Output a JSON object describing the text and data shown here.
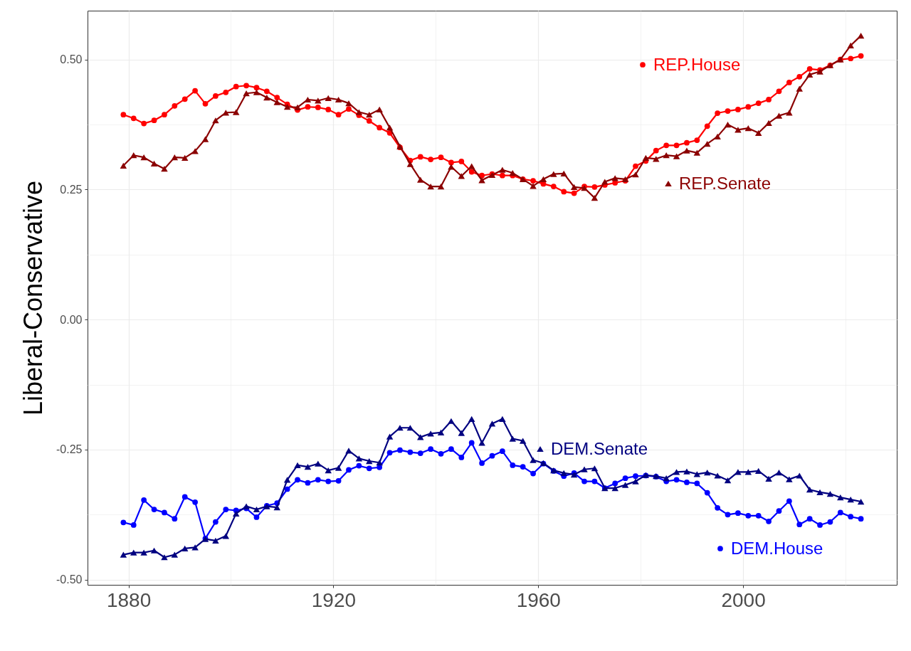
{
  "chart_data": {
    "type": "line",
    "ylabel": "Liberal-Conservative",
    "x": [
      1879,
      1881,
      1883,
      1885,
      1887,
      1889,
      1891,
      1893,
      1895,
      1897,
      1899,
      1901,
      1903,
      1905,
      1907,
      1909,
      1911,
      1913,
      1915,
      1917,
      1919,
      1921,
      1923,
      1925,
      1927,
      1929,
      1931,
      1933,
      1935,
      1937,
      1939,
      1941,
      1943,
      1945,
      1947,
      1949,
      1951,
      1953,
      1955,
      1957,
      1959,
      1961,
      1963,
      1965,
      1967,
      1969,
      1971,
      1973,
      1975,
      1977,
      1979,
      1981,
      1983,
      1985,
      1987,
      1989,
      1991,
      1993,
      1995,
      1997,
      1999,
      2001,
      2003,
      2005,
      2007,
      2009,
      2011,
      2013,
      2015,
      2017,
      2019,
      2021,
      2023
    ],
    "series": [
      {
        "name": "REP.House",
        "color": "#ff0000",
        "marker": "circle",
        "values": [
          0.394,
          0.387,
          0.377,
          0.383,
          0.394,
          0.411,
          0.424,
          0.44,
          0.415,
          0.43,
          0.437,
          0.448,
          0.45,
          0.446,
          0.439,
          0.427,
          0.414,
          0.403,
          0.409,
          0.408,
          0.404,
          0.394,
          0.405,
          0.393,
          0.382,
          0.369,
          0.359,
          0.331,
          0.306,
          0.313,
          0.308,
          0.312,
          0.302,
          0.304,
          0.284,
          0.277,
          0.28,
          0.277,
          0.277,
          0.27,
          0.267,
          0.261,
          0.256,
          0.246,
          0.243,
          0.256,
          0.255,
          0.259,
          0.263,
          0.267,
          0.295,
          0.305,
          0.325,
          0.335,
          0.335,
          0.34,
          0.345,
          0.372,
          0.397,
          0.401,
          0.404,
          0.409,
          0.416,
          0.423,
          0.439,
          0.456,
          0.467,
          0.482,
          0.48,
          0.489,
          0.5,
          0.502,
          0.507
        ]
      },
      {
        "name": "REP.Senate",
        "color": "#8b0000",
        "marker": "triangle",
        "values": [
          0.296,
          0.316,
          0.312,
          0.3,
          0.29,
          0.312,
          0.311,
          0.324,
          0.347,
          0.383,
          0.398,
          0.399,
          0.435,
          0.437,
          0.427,
          0.418,
          0.409,
          0.408,
          0.423,
          0.421,
          0.426,
          0.423,
          0.416,
          0.399,
          0.394,
          0.404,
          0.369,
          0.333,
          0.299,
          0.269,
          0.256,
          0.256,
          0.294,
          0.276,
          0.295,
          0.268,
          0.278,
          0.288,
          0.282,
          0.27,
          0.257,
          0.27,
          0.28,
          0.281,
          0.255,
          0.253,
          0.234,
          0.265,
          0.272,
          0.27,
          0.279,
          0.311,
          0.309,
          0.316,
          0.314,
          0.325,
          0.321,
          0.338,
          0.352,
          0.375,
          0.365,
          0.368,
          0.359,
          0.378,
          0.392,
          0.398,
          0.444,
          0.471,
          0.477,
          0.489,
          0.5,
          0.527,
          0.546
        ]
      },
      {
        "name": "DEM.House",
        "color": "#0000ff",
        "marker": "circle",
        "values": [
          -0.39,
          -0.395,
          -0.347,
          -0.365,
          -0.371,
          -0.383,
          -0.341,
          -0.351,
          -0.421,
          -0.389,
          -0.365,
          -0.367,
          -0.363,
          -0.38,
          -0.358,
          -0.353,
          -0.326,
          -0.308,
          -0.314,
          -0.308,
          -0.311,
          -0.31,
          -0.289,
          -0.281,
          -0.286,
          -0.284,
          -0.256,
          -0.251,
          -0.255,
          -0.257,
          -0.249,
          -0.258,
          -0.249,
          -0.265,
          -0.237,
          -0.276,
          -0.262,
          -0.253,
          -0.28,
          -0.283,
          -0.296,
          -0.277,
          -0.291,
          -0.301,
          -0.295,
          -0.311,
          -0.311,
          -0.324,
          -0.315,
          -0.305,
          -0.301,
          -0.3,
          -0.302,
          -0.311,
          -0.308,
          -0.313,
          -0.315,
          -0.333,
          -0.362,
          -0.375,
          -0.372,
          -0.377,
          -0.377,
          -0.388,
          -0.368,
          -0.349,
          -0.394,
          -0.383,
          -0.395,
          -0.389,
          -0.371,
          -0.379,
          -0.383
        ]
      },
      {
        "name": "DEM.Senate",
        "color": "#000080",
        "marker": "triangle",
        "values": [
          -0.452,
          -0.448,
          -0.448,
          -0.444,
          -0.457,
          -0.452,
          -0.44,
          -0.438,
          -0.422,
          -0.425,
          -0.416,
          -0.373,
          -0.359,
          -0.365,
          -0.359,
          -0.361,
          -0.308,
          -0.28,
          -0.283,
          -0.277,
          -0.29,
          -0.285,
          -0.252,
          -0.267,
          -0.272,
          -0.275,
          -0.225,
          -0.208,
          -0.208,
          -0.226,
          -0.219,
          -0.217,
          -0.195,
          -0.218,
          -0.191,
          -0.237,
          -0.2,
          -0.191,
          -0.229,
          -0.233,
          -0.27,
          -0.276,
          -0.29,
          -0.295,
          -0.298,
          -0.288,
          -0.286,
          -0.324,
          -0.324,
          -0.318,
          -0.311,
          -0.299,
          -0.301,
          -0.305,
          -0.293,
          -0.292,
          -0.297,
          -0.294,
          -0.3,
          -0.309,
          -0.293,
          -0.293,
          -0.291,
          -0.306,
          -0.294,
          -0.307,
          -0.3,
          -0.327,
          -0.332,
          -0.335,
          -0.342,
          -0.346,
          -0.35
        ]
      }
    ],
    "xlim": [
      1872,
      2030
    ],
    "xticks": [
      1880,
      {
        "value": 1900,
        "label": null
      },
      1920,
      {
        "value": 1940,
        "label": null
      },
      1960,
      {
        "value": 1980,
        "label": null
      },
      2000,
      {
        "value": 2020,
        "label": null
      }
    ],
    "ylim": [
      -0.51,
      0.594
    ],
    "yticks": [
      {
        "value": -0.5,
        "label": "-0.50"
      },
      {
        "value": -0.375,
        "label": null
      },
      {
        "value": -0.25,
        "label": "-0.25"
      },
      {
        "value": -0.125,
        "label": null
      },
      {
        "value": 0,
        "label": "0.00"
      },
      {
        "value": 0.125,
        "label": null
      },
      {
        "value": 0.25,
        "label": "0.25"
      },
      {
        "value": 0.375,
        "label": null
      },
      {
        "value": 0.5,
        "label": "0.50"
      }
    ],
    "grid": true,
    "legend": "right",
    "line_style": "solid"
  }
}
